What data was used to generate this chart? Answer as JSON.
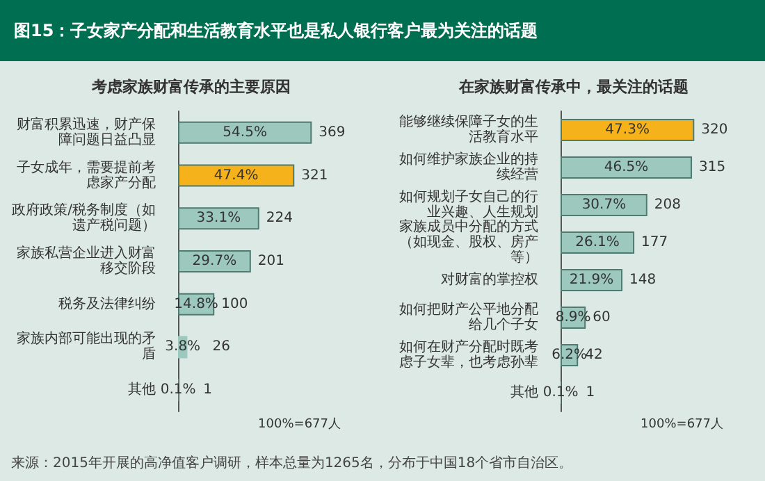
{
  "chart_data": [
    {
      "type": "bar",
      "orientation": "horizontal",
      "title": "图15：子女家产分配和生活教育水平也是私人银行客户最为关注的话题",
      "subtitle": "考虑家族财富传承的主要原因",
      "categories": [
        "财富积累迅速，财产保障问题日益凸显",
        "子女成年，需要提前考虑家产分配",
        "政府政策/税务制度（如遗产税问题）",
        "家族私营企业进入财富移交阶段",
        "税务及法律纠纷",
        "家族内部可能出现的矛盾",
        "其他"
      ],
      "values": [
        54.5,
        47.4,
        33.1,
        29.7,
        14.8,
        3.8,
        0.1
      ],
      "colors": [
        "#9cc8bd",
        "#f5b21a",
        "#9cc8bd",
        "#9cc8bd",
        "#9cc8bd",
        "#9cc8bd",
        "#9cc8bd"
      ],
      "value_labels": [
        "54.5%",
        "47.4%",
        "33.1%",
        "29.7%",
        "14.8%",
        "3.8%",
        "0.1%"
      ],
      "annotations": [
        {
          "text": "369",
          "x": 54.5,
          "y": "财富积累迅速，财产保障问题日益凸显"
        },
        {
          "text": "321",
          "x": 47.4,
          "y": "子女成年，需要提前考虑家产分配"
        },
        {
          "text": "224",
          "x": 33.1,
          "y": "政府政策/税务制度（如遗产税问题）"
        },
        {
          "text": "201",
          "x": 29.7,
          "y": "家族私营企业进入财富移交阶段"
        },
        {
          "text": "100",
          "x": 14.8,
          "y": "税务及法律纠纷"
        },
        {
          "text": "26",
          "x": 3.8,
          "y": "家族内部可能出现的矛盾"
        },
        {
          "text": "1",
          "x": 0.1,
          "y": "其他"
        },
        "100%=677人",
        "来源：2015年开展的高净值客户调研，样本总量为1265名，分布于中国18个省市自治区。"
      ]
    },
    {
      "type": "bar",
      "orientation": "horizontal",
      "title": "在家族财富传承中，最关注的话题",
      "categories": [
        "能够继续保障子女的生活教育水平",
        "如何维护家族企业的持续经营",
        "如何规划子女自己的行业兴趣、人生规划",
        "家族成员中分配的方式（如现金、股权、房产等）",
        "对财富的掌控权",
        "如何把财产公平地分配给几个子女",
        "如何在财产分配时既考虑子女辈，也考虑孙辈",
        "其他"
      ],
      "values": [
        47.3,
        46.5,
        30.7,
        26.1,
        21.9,
        8.9,
        6.2,
        0.1
      ],
      "colors": [
        "#f5b21a",
        "#9cc8bd",
        "#9cc8bd",
        "#9cc8bd",
        "#9cc8bd",
        "#9cc8bd",
        "#9cc8bd",
        "#9cc8bd"
      ],
      "value_labels": [
        "47.3%",
        "46.5%",
        "30.7%",
        "26.1%",
        "21.9%",
        "8.9%",
        "6.2%",
        "0.1%"
      ],
      "annotations": [
        {
          "text": "320",
          "x": 47.3,
          "y": "能够继续保障子女的生活教育水平"
        },
        {
          "text": "315",
          "x": 46.5,
          "y": "如何维护家族企业的持续经营"
        },
        {
          "text": "208",
          "x": 30.7,
          "y": "如何规划子女自己的行业兴趣、人生规划"
        },
        {
          "text": "177",
          "x": 26.1,
          "y": "家族成员中分配的方式（如现金、股权、房产等）"
        },
        {
          "text": "148",
          "x": 21.9,
          "y": "对财富的掌控权"
        },
        {
          "text": "60",
          "x": 8.9,
          "y": "如何把财产公平地分配给几个子女"
        },
        {
          "text": "42",
          "x": 6.2,
          "y": "如何在财产分配时既考虑子女辈，也考虑孙辈"
        },
        {
          "text": "1",
          "x": 0.1,
          "y": "其他"
        },
        "100%=677人"
      ]
    }
  ]
}
